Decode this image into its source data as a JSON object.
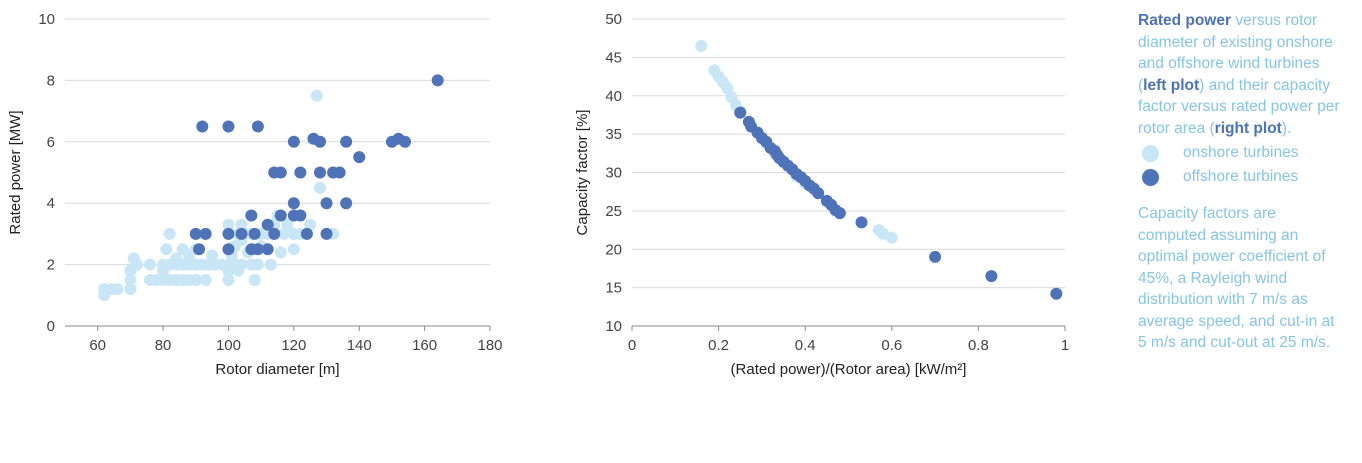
{
  "colors": {
    "onshore": "#c8e6f5",
    "offshore": "#4f73b8",
    "caption_text": "#86c5e6",
    "caption_strong": "#4a73b8"
  },
  "caption": {
    "part1_strong": "Rated power",
    "part2": " versus rotor diameter of existing onshore and offshore wind turbines (",
    "part3_strong": "left plot",
    "part4": ") and their capacity factor versus rated power per rotor area (",
    "part5_strong": "right plot",
    "part6": ").",
    "legend": [
      {
        "label": "onshore turbines",
        "color": "#c8e6f5"
      },
      {
        "label": "offshore turbines",
        "color": "#4f73b8"
      }
    ],
    "note": "Capacity factors are computed assuming an optimal power coefficient of 45%, a Rayleigh wind distribution with 7 m/s as average speed, and cut-in at 5 m/s and cut-out at 25 m/s."
  },
  "chart_data": [
    {
      "type": "scatter",
      "title": "",
      "xlabel": "Rotor diameter [m]",
      "ylabel": "Rated power [MW]",
      "xlim": [
        50,
        180
      ],
      "ylim": [
        0,
        10
      ],
      "xticks": [
        60,
        80,
        100,
        120,
        140,
        160,
        180
      ],
      "yticks": [
        0,
        2,
        4,
        6,
        8,
        10
      ],
      "grid": "horizontal",
      "series": [
        {
          "name": "onshore turbines",
          "points": [
            [
              62,
              1.0
            ],
            [
              62,
              1.2
            ],
            [
              64,
              1.2
            ],
            [
              66,
              1.2
            ],
            [
              70,
              1.2
            ],
            [
              70,
              1.5
            ],
            [
              70,
              1.8
            ],
            [
              71,
              2.2
            ],
            [
              72,
              2.0
            ],
            [
              76,
              1.5
            ],
            [
              76,
              2.0
            ],
            [
              78,
              1.5
            ],
            [
              80,
              1.5
            ],
            [
              80,
              1.8
            ],
            [
              80,
              2.0
            ],
            [
              81,
              2.5
            ],
            [
              82,
              3.0
            ],
            [
              82,
              1.5
            ],
            [
              82,
              2.0
            ],
            [
              84,
              1.5
            ],
            [
              84,
              2.0
            ],
            [
              84,
              2.2
            ],
            [
              86,
              1.5
            ],
            [
              86,
              2.0
            ],
            [
              86,
              2.5
            ],
            [
              88,
              1.5
            ],
            [
              88,
              2.0
            ],
            [
              88,
              2.3
            ],
            [
              90,
              1.5
            ],
            [
              90,
              2.0
            ],
            [
              90,
              2.5
            ],
            [
              92,
              2.0
            ],
            [
              93,
              1.5
            ],
            [
              94,
              2.0
            ],
            [
              95,
              2.3
            ],
            [
              96,
              2.0
            ],
            [
              98,
              2.0
            ],
            [
              100,
              1.5
            ],
            [
              100,
              1.8
            ],
            [
              100,
              2.0
            ],
            [
              100,
              2.5
            ],
            [
              100,
              3.0
            ],
            [
              100,
              3.3
            ],
            [
              101,
              2.3
            ],
            [
              102,
              2.0
            ],
            [
              102,
              2.6
            ],
            [
              103,
              1.8
            ],
            [
              103,
              3.0
            ],
            [
              104,
              2.0
            ],
            [
              104,
              2.8
            ],
            [
              104,
              3.3
            ],
            [
              105,
              3.0
            ],
            [
              106,
              2.4
            ],
            [
              107,
              2.0
            ],
            [
              107,
              3.0
            ],
            [
              108,
              1.5
            ],
            [
              108,
              2.5
            ],
            [
              109,
              2.0
            ],
            [
              110,
              2.6
            ],
            [
              110,
              3.0
            ],
            [
              112,
              3.0
            ],
            [
              113,
              2.0
            ],
            [
              114,
              3.3
            ],
            [
              115,
              3.6
            ],
            [
              116,
              2.4
            ],
            [
              117,
              3.0
            ],
            [
              118,
              3.3
            ],
            [
              120,
              2.5
            ],
            [
              120,
              3.0
            ],
            [
              122,
              3.0
            ],
            [
              125,
              3.3
            ],
            [
              127,
              7.5
            ],
            [
              128,
              4.5
            ],
            [
              132,
              3.0
            ]
          ]
        },
        {
          "name": "offshore turbines",
          "points": [
            [
              90,
              3.0
            ],
            [
              91,
              2.5
            ],
            [
              92,
              6.5
            ],
            [
              93,
              3.0
            ],
            [
              100,
              3.0
            ],
            [
              100,
              6.5
            ],
            [
              100,
              2.5
            ],
            [
              104,
              3.0
            ],
            [
              107,
              2.5
            ],
            [
              107,
              3.6
            ],
            [
              108,
              3.0
            ],
            [
              109,
              2.5
            ],
            [
              109,
              6.5
            ],
            [
              112,
              3.3
            ],
            [
              112,
              2.5
            ],
            [
              114,
              3.0
            ],
            [
              114,
              5.0
            ],
            [
              116,
              3.6
            ],
            [
              116,
              5.0
            ],
            [
              120,
              3.6
            ],
            [
              120,
              4.0
            ],
            [
              120,
              6.0
            ],
            [
              122,
              3.6
            ],
            [
              122,
              5.0
            ],
            [
              124,
              3.0
            ],
            [
              126,
              6.1
            ],
            [
              128,
              6.0
            ],
            [
              128,
              5.0
            ],
            [
              130,
              3.0
            ],
            [
              130,
              4.0
            ],
            [
              132,
              5.0
            ],
            [
              134,
              5.0
            ],
            [
              136,
              4.0
            ],
            [
              136,
              6.0
            ],
            [
              140,
              5.5
            ],
            [
              150,
              6.0
            ],
            [
              152,
              6.1
            ],
            [
              154,
              6.0
            ],
            [
              164,
              8.0
            ]
          ]
        }
      ]
    },
    {
      "type": "scatter",
      "title": "",
      "xlabel": "(Rated power)/(Rotor area) [kW/m²]",
      "ylabel": "Capacity factor [%]",
      "xlim": [
        0,
        1
      ],
      "ylim": [
        10,
        50
      ],
      "xticks": [
        0,
        0.2,
        0.4,
        0.6,
        0.8,
        1
      ],
      "xtick_labels": [
        "0",
        "0.2",
        "0.4",
        "0.6",
        "0.8",
        "1"
      ],
      "yticks": [
        10,
        15,
        20,
        25,
        30,
        35,
        40,
        45,
        50
      ],
      "grid": "horizontal",
      "series": [
        {
          "name": "onshore turbines",
          "points": [
            [
              0.16,
              46.5
            ],
            [
              0.19,
              43.3
            ],
            [
              0.2,
              42.5
            ],
            [
              0.21,
              41.8
            ],
            [
              0.22,
              41.0
            ],
            [
              0.23,
              39.8
            ],
            [
              0.24,
              38.8
            ],
            [
              0.25,
              38.0
            ],
            [
              0.27,
              36.6
            ],
            [
              0.29,
              35.2
            ],
            [
              0.31,
              33.8
            ],
            [
              0.33,
              32.5
            ],
            [
              0.35,
              31.3
            ],
            [
              0.38,
              29.5
            ],
            [
              0.4,
              28.6
            ],
            [
              0.57,
              22.5
            ],
            [
              0.58,
              22.0
            ],
            [
              0.6,
              21.5
            ]
          ]
        },
        {
          "name": "offshore turbines",
          "points": [
            [
              0.25,
              37.8
            ],
            [
              0.27,
              36.6
            ],
            [
              0.275,
              36.0
            ],
            [
              0.29,
              35.2
            ],
            [
              0.3,
              34.5
            ],
            [
              0.31,
              34.0
            ],
            [
              0.32,
              33.2
            ],
            [
              0.33,
              32.8
            ],
            [
              0.335,
              32.3
            ],
            [
              0.34,
              31.9
            ],
            [
              0.35,
              31.4
            ],
            [
              0.36,
              30.9
            ],
            [
              0.37,
              30.4
            ],
            [
              0.38,
              29.8
            ],
            [
              0.39,
              29.4
            ],
            [
              0.4,
              28.9
            ],
            [
              0.41,
              28.3
            ],
            [
              0.42,
              27.9
            ],
            [
              0.43,
              27.3
            ],
            [
              0.45,
              26.3
            ],
            [
              0.46,
              25.8
            ],
            [
              0.47,
              25.1
            ],
            [
              0.48,
              24.7
            ],
            [
              0.53,
              23.5
            ],
            [
              0.7,
              19.0
            ],
            [
              0.83,
              16.5
            ],
            [
              0.98,
              14.2
            ]
          ]
        }
      ]
    }
  ]
}
